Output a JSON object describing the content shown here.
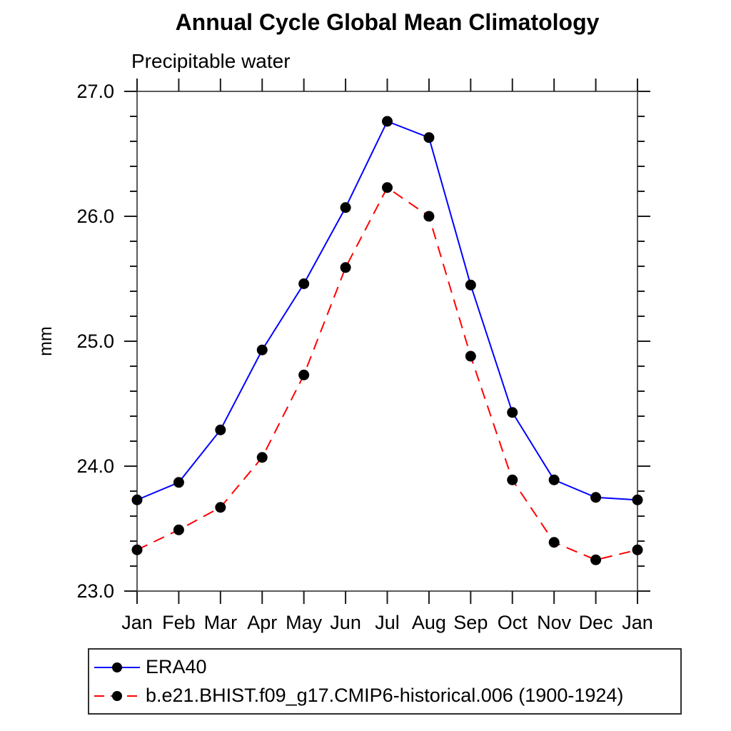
{
  "chart_data": {
    "type": "line",
    "title": "Annual Cycle Global Mean Climatology",
    "subtitle": "Precipitable water",
    "ylabel": "mm",
    "categories": [
      "Jan",
      "Feb",
      "Mar",
      "Apr",
      "May",
      "Jun",
      "Jul",
      "Aug",
      "Sep",
      "Oct",
      "Nov",
      "Dec",
      "Jan"
    ],
    "x_tick_labels": [
      "Jan",
      "Feb",
      "Mar",
      "Apr",
      "May",
      "Jun",
      "Jul",
      "Aug",
      "Sep",
      "Oct",
      "Nov",
      "Dec",
      "Jan"
    ],
    "y_tick_labels": [
      "23.0",
      "24.0",
      "25.0",
      "26.0",
      "27.0"
    ],
    "ylim": [
      23.0,
      27.0
    ],
    "y_major_step": 1.0,
    "y_minor_step": 0.2,
    "grid": false,
    "legend_position": "bottom",
    "axis_color": "#5a5a5a",
    "tick_color": "#1c1c1c",
    "marker_color": "#000000",
    "series": [
      {
        "name": "ERA40",
        "color": "#0000ff",
        "style": "solid",
        "marker": "filled-circle",
        "values": [
          23.73,
          23.87,
          24.29,
          24.93,
          25.46,
          26.07,
          26.76,
          26.63,
          25.45,
          24.43,
          23.89,
          23.75,
          23.73
        ]
      },
      {
        "name": "b.e21.BHIST.f09_g17.CMIP6-historical.006 (1900-1924)",
        "color": "#ff0000",
        "style": "dashed",
        "marker": "filled-circle",
        "values": [
          23.33,
          23.49,
          23.67,
          24.07,
          24.73,
          25.59,
          26.23,
          26.0,
          24.88,
          23.89,
          23.39,
          23.25,
          23.33
        ]
      }
    ]
  }
}
